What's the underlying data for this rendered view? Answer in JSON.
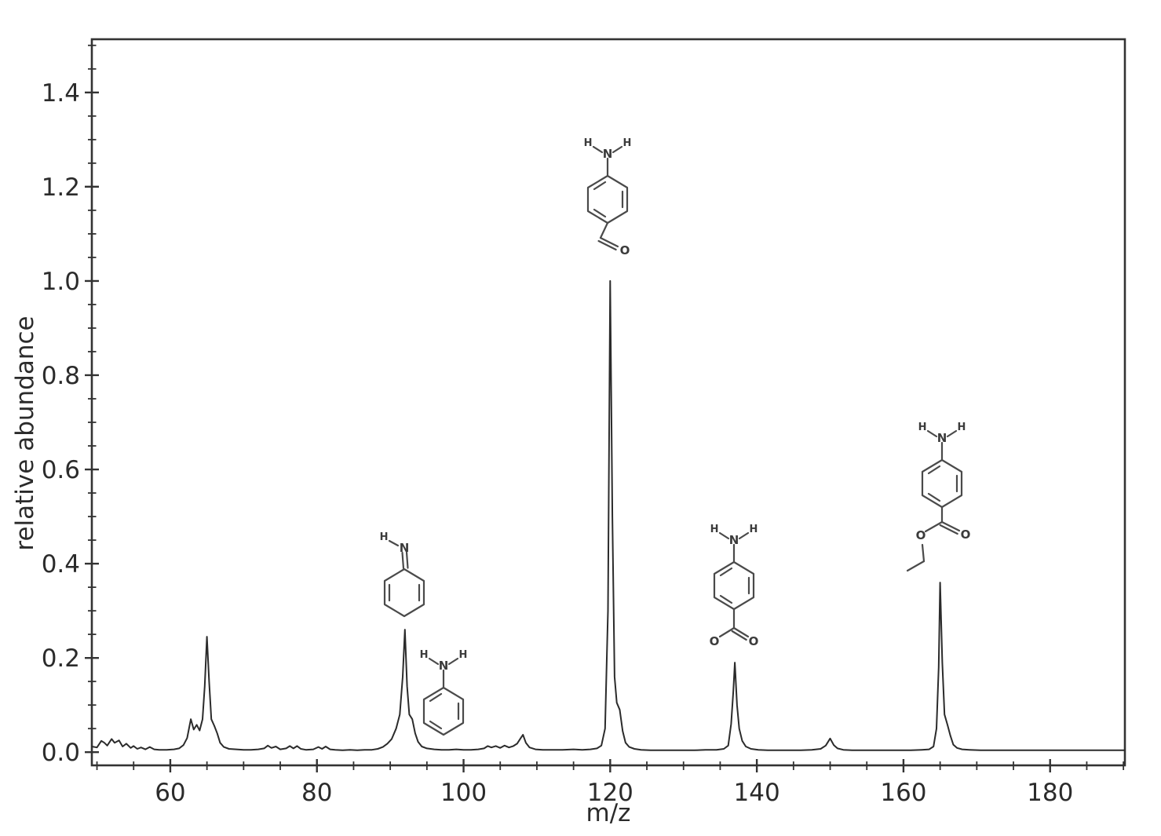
{
  "figure": {
    "xlabel": "m/z",
    "ylabel": "relative abundance"
  },
  "chart_data": {
    "type": "line",
    "title": "",
    "xlabel": "m/z",
    "ylabel": "relative abundance",
    "xlim": [
      49.3,
      190.2
    ],
    "ylim": [
      -0.028,
      1.513
    ],
    "x_major_ticks": [
      60,
      80,
      100,
      120,
      140,
      160,
      180
    ],
    "x_minor_step": 5,
    "y_major_ticks": [
      0.0,
      0.2,
      0.4,
      0.6,
      0.8,
      1.0,
      1.2,
      1.4
    ],
    "y_minor_step": 0.05,
    "grid": false,
    "legend": "none",
    "line_color": "#2b2b2b",
    "main_peaks": [
      {
        "mz": 63,
        "intensity": 0.07
      },
      {
        "mz": 65,
        "intensity": 0.245
      },
      {
        "mz": 92,
        "intensity": 0.26
      },
      {
        "mz": 93,
        "intensity": 0.07
      },
      {
        "mz": 108,
        "intensity": 0.037
      },
      {
        "mz": 120,
        "intensity": 1.0
      },
      {
        "mz": 121,
        "intensity": 0.1
      },
      {
        "mz": 137,
        "intensity": 0.19
      },
      {
        "mz": 150,
        "intensity": 0.029
      },
      {
        "mz": 165,
        "intensity": 0.36
      },
      {
        "mz": 166,
        "intensity": 0.058
      }
    ],
    "trace": [
      [
        49.3,
        0.012
      ],
      [
        50,
        0.01
      ],
      [
        50.6,
        0.024
      ],
      [
        51,
        0.02
      ],
      [
        51.4,
        0.014
      ],
      [
        52,
        0.028
      ],
      [
        52.4,
        0.02
      ],
      [
        53,
        0.025
      ],
      [
        53.5,
        0.012
      ],
      [
        54,
        0.018
      ],
      [
        54.6,
        0.009
      ],
      [
        55,
        0.013
      ],
      [
        55.5,
        0.007
      ],
      [
        56,
        0.01
      ],
      [
        56.6,
        0.006
      ],
      [
        57.2,
        0.011
      ],
      [
        57.8,
        0.006
      ],
      [
        58.5,
        0.005
      ],
      [
        59.5,
        0.005
      ],
      [
        60.5,
        0.006
      ],
      [
        61.2,
        0.008
      ],
      [
        61.8,
        0.015
      ],
      [
        62.3,
        0.03
      ],
      [
        62.8,
        0.07
      ],
      [
        63.2,
        0.048
      ],
      [
        63.6,
        0.058
      ],
      [
        64,
        0.046
      ],
      [
        64.4,
        0.07
      ],
      [
        64.7,
        0.14
      ],
      [
        65,
        0.245
      ],
      [
        65.3,
        0.15
      ],
      [
        65.6,
        0.07
      ],
      [
        66,
        0.056
      ],
      [
        66.4,
        0.04
      ],
      [
        66.8,
        0.02
      ],
      [
        67.3,
        0.011
      ],
      [
        68,
        0.007
      ],
      [
        69,
        0.006
      ],
      [
        70,
        0.005
      ],
      [
        71,
        0.005
      ],
      [
        72,
        0.006
      ],
      [
        72.8,
        0.008
      ],
      [
        73.3,
        0.014
      ],
      [
        73.8,
        0.009
      ],
      [
        74.4,
        0.012
      ],
      [
        75,
        0.006
      ],
      [
        75.8,
        0.008
      ],
      [
        76.3,
        0.013
      ],
      [
        76.8,
        0.008
      ],
      [
        77.3,
        0.013
      ],
      [
        77.8,
        0.007
      ],
      [
        78.5,
        0.005
      ],
      [
        79.5,
        0.006
      ],
      [
        80.2,
        0.011
      ],
      [
        80.7,
        0.007
      ],
      [
        81.2,
        0.012
      ],
      [
        81.8,
        0.006
      ],
      [
        82.5,
        0.005
      ],
      [
        83.5,
        0.004
      ],
      [
        84.5,
        0.005
      ],
      [
        85.5,
        0.004
      ],
      [
        86.5,
        0.005
      ],
      [
        87.5,
        0.005
      ],
      [
        88.3,
        0.007
      ],
      [
        89,
        0.011
      ],
      [
        89.6,
        0.018
      ],
      [
        90.2,
        0.028
      ],
      [
        90.8,
        0.05
      ],
      [
        91.3,
        0.08
      ],
      [
        91.7,
        0.16
      ],
      [
        92,
        0.26
      ],
      [
        92.3,
        0.14
      ],
      [
        92.6,
        0.08
      ],
      [
        93,
        0.07
      ],
      [
        93.4,
        0.04
      ],
      [
        93.8,
        0.022
      ],
      [
        94.3,
        0.012
      ],
      [
        95,
        0.008
      ],
      [
        96,
        0.006
      ],
      [
        97,
        0.005
      ],
      [
        98,
        0.005
      ],
      [
        99,
        0.006
      ],
      [
        100,
        0.005
      ],
      [
        101,
        0.005
      ],
      [
        102,
        0.006
      ],
      [
        102.8,
        0.008
      ],
      [
        103.3,
        0.013
      ],
      [
        103.8,
        0.01
      ],
      [
        104.4,
        0.013
      ],
      [
        105,
        0.009
      ],
      [
        105.6,
        0.014
      ],
      [
        106.2,
        0.01
      ],
      [
        106.8,
        0.013
      ],
      [
        107.3,
        0.018
      ],
      [
        107.8,
        0.03
      ],
      [
        108.1,
        0.037
      ],
      [
        108.5,
        0.02
      ],
      [
        109,
        0.01
      ],
      [
        109.8,
        0.006
      ],
      [
        110.8,
        0.005
      ],
      [
        112,
        0.005
      ],
      [
        113.5,
        0.005
      ],
      [
        115,
        0.006
      ],
      [
        116.2,
        0.005
      ],
      [
        117.3,
        0.006
      ],
      [
        118.2,
        0.008
      ],
      [
        118.8,
        0.014
      ],
      [
        119.3,
        0.05
      ],
      [
        119.7,
        0.3
      ],
      [
        120,
        1.0
      ],
      [
        120.3,
        0.5
      ],
      [
        120.6,
        0.16
      ],
      [
        120.9,
        0.105
      ],
      [
        121.3,
        0.09
      ],
      [
        121.7,
        0.045
      ],
      [
        122.1,
        0.02
      ],
      [
        122.6,
        0.011
      ],
      [
        123.3,
        0.007
      ],
      [
        124.2,
        0.005
      ],
      [
        125.5,
        0.004
      ],
      [
        127,
        0.004
      ],
      [
        128.5,
        0.004
      ],
      [
        130,
        0.004
      ],
      [
        131.5,
        0.004
      ],
      [
        133,
        0.005
      ],
      [
        134.5,
        0.005
      ],
      [
        135.5,
        0.007
      ],
      [
        136.1,
        0.014
      ],
      [
        136.5,
        0.06
      ],
      [
        136.8,
        0.13
      ],
      [
        137,
        0.19
      ],
      [
        137.3,
        0.1
      ],
      [
        137.6,
        0.05
      ],
      [
        138,
        0.024
      ],
      [
        138.5,
        0.012
      ],
      [
        139.2,
        0.007
      ],
      [
        140.2,
        0.005
      ],
      [
        141.5,
        0.004
      ],
      [
        143,
        0.004
      ],
      [
        144.5,
        0.004
      ],
      [
        146,
        0.004
      ],
      [
        147.5,
        0.005
      ],
      [
        148.7,
        0.007
      ],
      [
        149.4,
        0.014
      ],
      [
        150,
        0.029
      ],
      [
        150.5,
        0.015
      ],
      [
        151,
        0.008
      ],
      [
        151.8,
        0.005
      ],
      [
        153,
        0.004
      ],
      [
        155,
        0.004
      ],
      [
        157,
        0.004
      ],
      [
        159,
        0.004
      ],
      [
        161,
        0.004
      ],
      [
        162.5,
        0.005
      ],
      [
        163.5,
        0.006
      ],
      [
        164.1,
        0.012
      ],
      [
        164.5,
        0.05
      ],
      [
        164.8,
        0.18
      ],
      [
        165,
        0.36
      ],
      [
        165.3,
        0.19
      ],
      [
        165.6,
        0.08
      ],
      [
        166,
        0.058
      ],
      [
        166.4,
        0.035
      ],
      [
        166.8,
        0.016
      ],
      [
        167.3,
        0.009
      ],
      [
        168,
        0.006
      ],
      [
        169,
        0.005
      ],
      [
        170.5,
        0.004
      ],
      [
        172,
        0.004
      ],
      [
        174,
        0.004
      ],
      [
        176,
        0.004
      ],
      [
        178,
        0.004
      ],
      [
        180,
        0.004
      ],
      [
        182,
        0.004
      ],
      [
        184,
        0.004
      ],
      [
        186,
        0.004
      ],
      [
        188,
        0.004
      ],
      [
        190.2,
        0.004
      ]
    ]
  },
  "annotations": {
    "molecules": [
      {
        "id": "structure-at-92-imine",
        "mz": 92,
        "atoms": {
          "h1": "H",
          "n": "N"
        }
      },
      {
        "id": "structure-at-93-aniline",
        "mz": 93,
        "atoms": {
          "h1": "H",
          "n": "N",
          "h2": "H"
        }
      },
      {
        "id": "structure-at-120-aminobenzaldehyde",
        "mz": 120,
        "atoms": {
          "h1": "H",
          "n": "N",
          "h2": "H",
          "o1": "O"
        }
      },
      {
        "id": "structure-at-137-aminobenzoate",
        "mz": 137,
        "atoms": {
          "h1": "H",
          "n": "N",
          "h2": "H",
          "o1": "O",
          "o2": "O"
        }
      },
      {
        "id": "structure-at-165-benzocaine",
        "mz": 165,
        "atoms": {
          "h1": "H",
          "n": "N",
          "h2": "H",
          "o1": "O",
          "o2": "O"
        }
      }
    ]
  }
}
